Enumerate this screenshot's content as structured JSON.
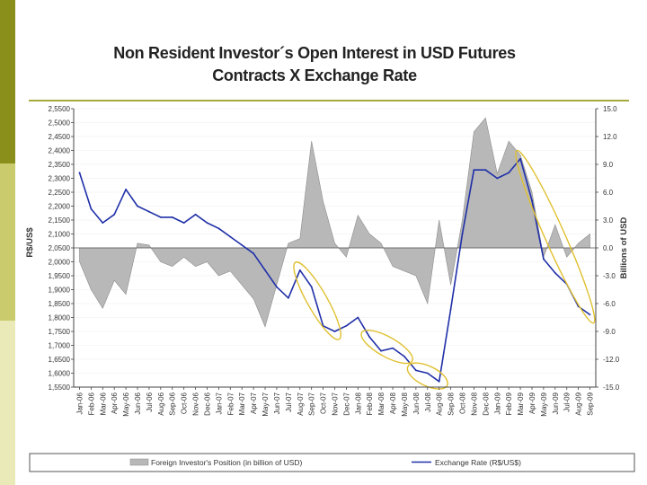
{
  "slide": {
    "title_line1": "Non Resident Investor´s Open Interest in USD Futures",
    "title_line2": "Contracts X Exchange Rate",
    "accent_color": "#8a8f1c"
  },
  "chart_data": {
    "type": "line",
    "title": "Non Resident Investor´s Open Interest in USD Futures Contracts X Exchange Rate",
    "x_categories": [
      "Jan-06",
      "Feb-06",
      "Mar-06",
      "Apr-06",
      "May-06",
      "Jun-06",
      "Jul-06",
      "Aug-06",
      "Sep-06",
      "Oct-06",
      "Nov-06",
      "Dec-06",
      "Jan-07",
      "Feb-07",
      "Mar-07",
      "Apr-07",
      "May-07",
      "Jun-07",
      "Jul-07",
      "Aug-07",
      "Sep-07",
      "Oct-07",
      "Nov-07",
      "Dec-07",
      "Jan-08",
      "Feb-08",
      "Mar-08",
      "Apr-08",
      "May-08",
      "Jun-08",
      "Jul-08",
      "Aug-08",
      "Sep-08",
      "Oct-08",
      "Nov-08",
      "Dec-08",
      "Jan-09",
      "Feb-09",
      "Mar-09",
      "Apr-09",
      "May-09",
      "Jun-09",
      "Jul-09",
      "Aug-09",
      "Sep-09"
    ],
    "y_left": {
      "label": "R$/US$",
      "range": [
        1.55,
        2.55
      ],
      "ticks": [
        "2,5500",
        "2,5000",
        "2,4500",
        "2,4000",
        "2,3500",
        "2,3000",
        "2,2500",
        "2,2000",
        "2,1500",
        "2,1000",
        "2,0500",
        "2,0000",
        "1,9500",
        "1,9000",
        "1,8500",
        "1,8000",
        "1,7500",
        "1,7000",
        "1,6500",
        "1,6000",
        "1,5500"
      ]
    },
    "y_right": {
      "label": "Billions of USD",
      "range": [
        -15,
        15
      ],
      "ticks": [
        "15.0",
        "12.0",
        "9.0",
        "6.0",
        "3.0",
        "0.0",
        "-3.0",
        "-6.0",
        "-9.0",
        "-12.0",
        "-15.0"
      ]
    },
    "series": [
      {
        "name": "Foreign Investor's Position (in billion of USD)",
        "type": "area",
        "axis": "right",
        "color": "#b8b8b8",
        "values": [
          -1.5,
          -4.5,
          -6.5,
          -3.5,
          -5.0,
          0.5,
          0.3,
          -1.5,
          -2.0,
          -1.0,
          -2.0,
          -1.5,
          -3.0,
          -2.5,
          -4.0,
          -5.5,
          -8.5,
          -4.0,
          0.5,
          1.0,
          11.5,
          5.0,
          0.5,
          -1.0,
          3.5,
          1.5,
          0.5,
          -2.0,
          -2.5,
          -3.0,
          -6.0,
          3.0,
          -4.0,
          3.0,
          12.5,
          14.0,
          8.0,
          11.5,
          10.0,
          6.0,
          -1.0,
          2.5,
          -1.0,
          0.5,
          1.5
        ]
      },
      {
        "name": "Exchange Rate (R$/US$)",
        "type": "line",
        "axis": "left",
        "color": "#1f2fa8",
        "values": [
          2.32,
          2.19,
          2.14,
          2.17,
          2.26,
          2.2,
          2.18,
          2.16,
          2.16,
          2.14,
          2.17,
          2.14,
          2.12,
          2.09,
          2.06,
          2.03,
          1.97,
          1.91,
          1.87,
          1.97,
          1.91,
          1.77,
          1.75,
          1.77,
          1.8,
          1.73,
          1.68,
          1.69,
          1.66,
          1.61,
          1.6,
          1.57,
          1.83,
          2.1,
          2.33,
          2.33,
          2.3,
          2.32,
          2.37,
          2.22,
          2.01,
          1.96,
          1.92,
          1.84,
          1.81
        ]
      }
    ],
    "highlights": [
      "Sep-07 to Nov-07 decline",
      "Feb-08 to Apr-08 decline",
      "Jun-08 to Aug-08 decline",
      "Mar-09 to Sep-09 decline"
    ],
    "legend": [
      {
        "label": "Foreign Investor's Position (in billion of USD)"
      },
      {
        "label": "Exchange Rate (R$/US$)"
      }
    ]
  }
}
